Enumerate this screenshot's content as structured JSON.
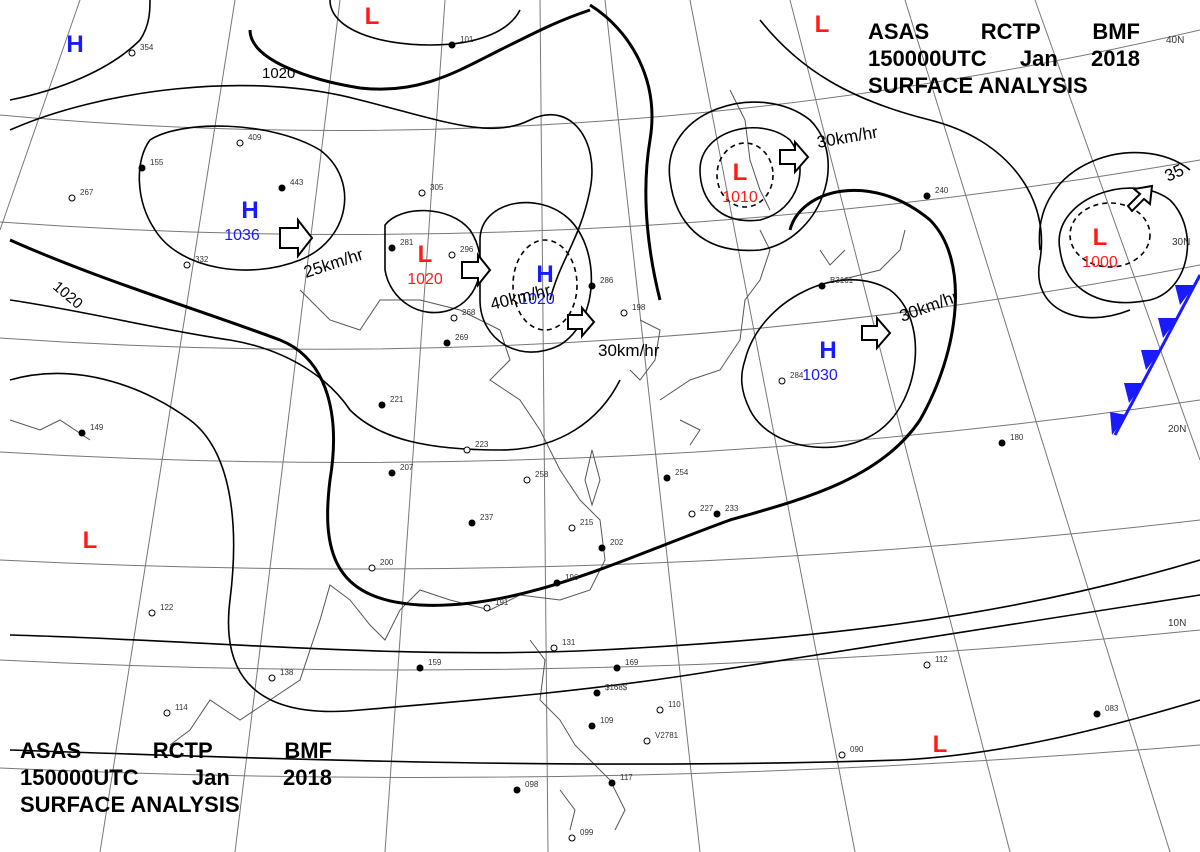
{
  "title": {
    "line1": [
      "ASAS",
      "RCTP",
      "BMF"
    ],
    "line2": [
      "150000UTC",
      "Jan",
      "2018"
    ],
    "line3": "SURFACE ANALYSIS"
  },
  "colors": {
    "high": "#1a1aff",
    "low": "#ff1a1a",
    "isobar": "#000000",
    "grid": "#777777",
    "front": "#1a1aff"
  },
  "high_pressure": [
    {
      "symbol": "H",
      "value": "1036"
    },
    {
      "symbol": "H",
      "value": "1020"
    },
    {
      "symbol": "H",
      "value": "1030"
    },
    {
      "symbol": "H",
      "value": ""
    }
  ],
  "low_pressure": [
    {
      "symbol": "L",
      "value": "1020"
    },
    {
      "symbol": "L",
      "value": "1010"
    },
    {
      "symbol": "L",
      "value": "1000"
    },
    {
      "symbol": "L",
      "value": ""
    },
    {
      "symbol": "L",
      "value": ""
    },
    {
      "symbol": "L",
      "value": ""
    },
    {
      "symbol": "L",
      "value": ""
    }
  ],
  "isobar_labels": [
    "1020",
    "1020"
  ],
  "movement_labels": [
    "25km/hr",
    "40km/hr",
    "30km/hr",
    "30km/hr",
    "30km/hr",
    "35"
  ],
  "latitude_labels": [
    "40N",
    "30N",
    "20N",
    "10N"
  ],
  "station_samples": [
    "354",
    "101",
    "409",
    "155",
    "267",
    "443",
    "305",
    "281",
    "296",
    "286",
    "332",
    "269",
    "268",
    "221",
    "223",
    "207",
    "258",
    "237",
    "215",
    "202",
    "200",
    "196",
    "191",
    "159",
    "131",
    "169",
    "110",
    "109",
    "114",
    "098",
    "099",
    "117",
    "138",
    "149",
    "122",
    "254",
    "227",
    "233",
    "284",
    "180",
    "112",
    "083",
    "090",
    "240",
    "198",
    "$168$",
    "V2781",
    "B3161"
  ]
}
